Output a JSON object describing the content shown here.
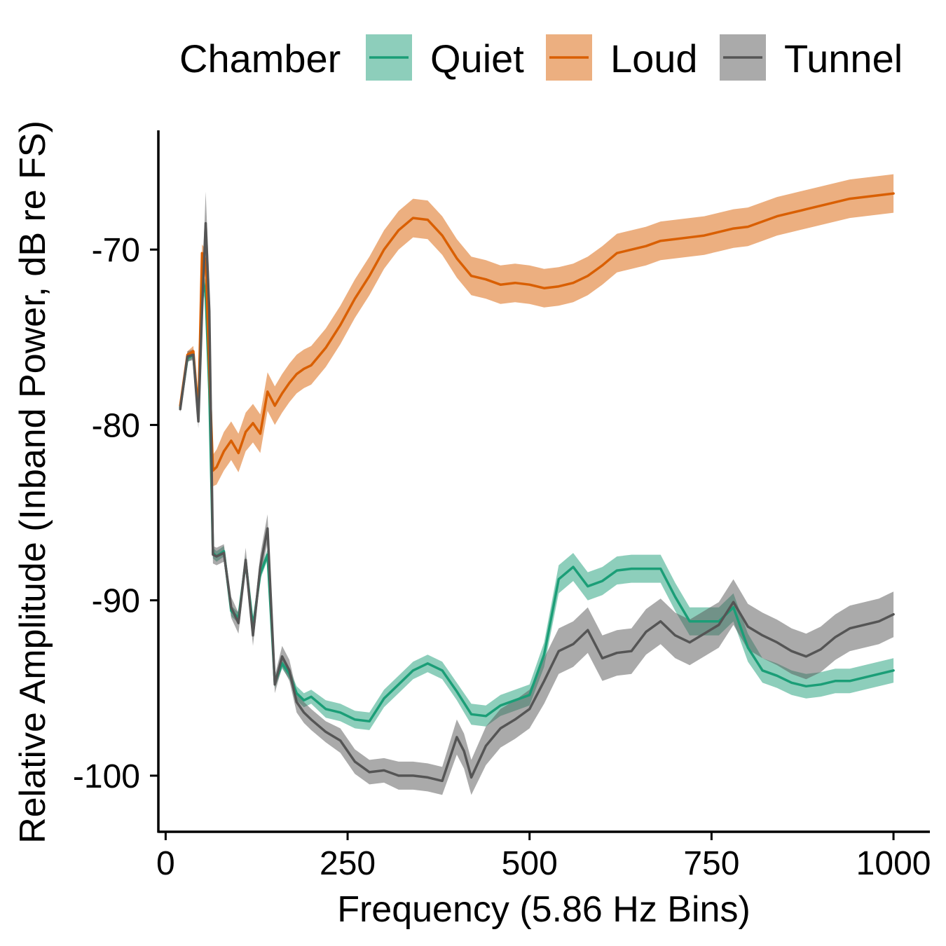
{
  "chart_data": {
    "type": "line",
    "title": "",
    "xlabel": "Frequency (5.86 Hz Bins)",
    "ylabel": "Relative Amplitude (Inband Power, dB re FS)",
    "xlim": [
      -10,
      1050
    ],
    "ylim": [
      -103.2,
      -63.2
    ],
    "xticks": [
      0,
      250,
      500,
      750,
      1000
    ],
    "yticks": [
      -100,
      -90,
      -80,
      -70
    ],
    "xtick_labels": [
      "0",
      "250",
      "500",
      "750",
      "1000"
    ],
    "ytick_labels": [
      "-100",
      "-90",
      "-80",
      "-70"
    ],
    "grid": false,
    "legend": {
      "title": "Chamber",
      "position": "top",
      "ribbon_opacity": 0.5
    },
    "series": [
      {
        "name": "Quiet",
        "color": "#1b9e77",
        "fill": "#8fc9b0",
        "x": [
          20,
          30,
          38,
          45,
          50,
          55,
          60,
          65,
          70,
          80,
          90,
          100,
          110,
          120,
          130,
          140,
          150,
          160,
          170,
          180,
          190,
          200,
          220,
          240,
          260,
          280,
          300,
          320,
          340,
          360,
          380,
          400,
          420,
          440,
          460,
          480,
          500,
          520,
          540,
          560,
          580,
          600,
          620,
          640,
          660,
          680,
          700,
          720,
          740,
          760,
          780,
          800,
          820,
          840,
          860,
          880,
          900,
          920,
          940,
          960,
          980,
          1000
        ],
        "y": [
          -79.0,
          -76.2,
          -76.0,
          -79.4,
          -71.5,
          -72.5,
          -78.0,
          -87.3,
          -87.5,
          -87.2,
          -90.6,
          -91.0,
          -87.8,
          -91.5,
          -88.5,
          -87.4,
          -94.7,
          -93.6,
          -94.2,
          -95.3,
          -95.7,
          -95.5,
          -96.2,
          -96.4,
          -96.8,
          -96.9,
          -95.6,
          -94.8,
          -94.0,
          -93.6,
          -94.0,
          -95.2,
          -96.5,
          -96.6,
          -96.0,
          -95.7,
          -95.4,
          -93.1,
          -88.8,
          -88.1,
          -89.2,
          -88.9,
          -88.3,
          -88.2,
          -88.2,
          -88.2,
          -89.8,
          -91.2,
          -91.2,
          -91.2,
          -90.4,
          -92.7,
          -94.0,
          -94.3,
          -94.7,
          -94.9,
          -94.8,
          -94.6,
          -94.6,
          -94.4,
          -94.2,
          -94.0
        ],
        "lower": [
          -79.2,
          -76.4,
          -76.2,
          -79.7,
          -72.1,
          -73.1,
          -78.2,
          -87.6,
          -87.8,
          -87.5,
          -90.9,
          -91.3,
          -88.1,
          -91.8,
          -88.8,
          -87.7,
          -95.0,
          -93.9,
          -94.5,
          -95.7,
          -96.1,
          -95.9,
          -96.7,
          -96.9,
          -97.3,
          -97.4,
          -96.1,
          -95.3,
          -94.5,
          -94.1,
          -94.5,
          -95.7,
          -97.1,
          -97.2,
          -96.6,
          -96.3,
          -96.0,
          -93.8,
          -89.6,
          -88.9,
          -90.0,
          -89.7,
          -89.1,
          -89.0,
          -89.0,
          -89.0,
          -90.6,
          -92.0,
          -92.0,
          -92.0,
          -91.2,
          -93.5,
          -94.7,
          -95.0,
          -95.4,
          -95.6,
          -95.5,
          -95.3,
          -95.3,
          -95.1,
          -94.9,
          -94.7
        ],
        "upper": [
          -78.8,
          -76.0,
          -75.8,
          -79.1,
          -70.9,
          -71.9,
          -77.8,
          -87.0,
          -87.2,
          -86.9,
          -90.3,
          -90.7,
          -87.5,
          -91.2,
          -88.2,
          -87.1,
          -94.4,
          -93.3,
          -93.9,
          -94.9,
          -95.3,
          -95.1,
          -95.7,
          -95.9,
          -96.3,
          -96.4,
          -95.1,
          -94.3,
          -93.5,
          -93.1,
          -93.5,
          -94.7,
          -95.9,
          -96.0,
          -95.4,
          -95.1,
          -94.8,
          -92.4,
          -88.0,
          -87.3,
          -88.4,
          -88.1,
          -87.5,
          -87.4,
          -87.4,
          -87.4,
          -89.0,
          -90.4,
          -90.4,
          -90.4,
          -89.6,
          -91.9,
          -93.3,
          -93.6,
          -94.0,
          -94.2,
          -94.1,
          -93.9,
          -93.9,
          -93.7,
          -93.5,
          -93.3
        ]
      },
      {
        "name": "Loud",
        "color": "#d95f02",
        "fill": "#e8a07c",
        "x": [
          20,
          30,
          38,
          45,
          50,
          55,
          60,
          65,
          70,
          80,
          90,
          100,
          110,
          120,
          130,
          140,
          150,
          160,
          170,
          180,
          190,
          200,
          220,
          240,
          260,
          280,
          300,
          320,
          340,
          360,
          380,
          400,
          420,
          440,
          460,
          480,
          500,
          520,
          540,
          560,
          580,
          600,
          620,
          640,
          660,
          680,
          700,
          720,
          740,
          760,
          780,
          800,
          820,
          840,
          860,
          880,
          900,
          920,
          940,
          960,
          980,
          1000
        ],
        "y": [
          -78.9,
          -76.0,
          -75.8,
          -79.3,
          -70.2,
          -70.6,
          -76.8,
          -82.6,
          -82.4,
          -81.5,
          -80.9,
          -81.6,
          -80.4,
          -79.9,
          -80.5,
          -78.1,
          -78.9,
          -78.2,
          -77.6,
          -77.1,
          -76.8,
          -76.6,
          -75.6,
          -74.3,
          -72.8,
          -71.5,
          -70.0,
          -68.9,
          -68.2,
          -68.3,
          -69.2,
          -70.5,
          -71.5,
          -71.7,
          -72.0,
          -71.9,
          -72.0,
          -72.2,
          -72.1,
          -71.9,
          -71.5,
          -70.9,
          -70.2,
          -70.0,
          -69.8,
          -69.5,
          -69.4,
          -69.3,
          -69.2,
          -69.0,
          -68.8,
          -68.7,
          -68.4,
          -68.1,
          -67.9,
          -67.7,
          -67.5,
          -67.3,
          -67.1,
          -67.0,
          -66.9,
          -66.8
        ],
        "lower": [
          -79.1,
          -76.2,
          -76.1,
          -79.6,
          -70.7,
          -71.2,
          -77.4,
          -83.5,
          -83.4,
          -82.6,
          -82.0,
          -82.7,
          -81.5,
          -81.0,
          -81.6,
          -79.2,
          -80.0,
          -79.3,
          -78.7,
          -78.2,
          -77.9,
          -77.7,
          -76.7,
          -75.4,
          -73.9,
          -72.6,
          -71.1,
          -70.0,
          -69.3,
          -69.4,
          -70.3,
          -71.6,
          -72.6,
          -72.8,
          -73.1,
          -73.0,
          -73.1,
          -73.3,
          -73.2,
          -73.0,
          -72.6,
          -72.0,
          -71.3,
          -71.1,
          -70.9,
          -70.6,
          -70.5,
          -70.4,
          -70.3,
          -70.1,
          -69.9,
          -69.8,
          -69.5,
          -69.2,
          -69.0,
          -68.8,
          -68.6,
          -68.4,
          -68.2,
          -68.1,
          -68.0,
          -67.9
        ],
        "upper": [
          -78.7,
          -75.8,
          -75.5,
          -79.0,
          -69.7,
          -70.0,
          -76.2,
          -81.7,
          -81.4,
          -80.4,
          -79.8,
          -80.5,
          -79.3,
          -78.8,
          -79.4,
          -77.0,
          -77.8,
          -77.1,
          -76.5,
          -76.0,
          -75.7,
          -75.5,
          -74.5,
          -73.2,
          -71.7,
          -70.4,
          -68.9,
          -67.8,
          -67.1,
          -67.2,
          -68.1,
          -69.4,
          -70.4,
          -70.6,
          -70.9,
          -70.8,
          -70.9,
          -71.1,
          -71.0,
          -70.8,
          -70.4,
          -69.8,
          -69.1,
          -68.9,
          -68.7,
          -68.4,
          -68.3,
          -68.2,
          -68.1,
          -67.9,
          -67.7,
          -67.6,
          -67.3,
          -67.0,
          -66.8,
          -66.6,
          -66.4,
          -66.2,
          -66.0,
          -65.9,
          -65.8,
          -65.7
        ]
      },
      {
        "name": "Tunnel",
        "color": "#555555",
        "fill": "#a6a6a6",
        "x": [
          20,
          30,
          38,
          45,
          50,
          55,
          60,
          65,
          70,
          80,
          90,
          100,
          110,
          120,
          130,
          140,
          150,
          160,
          170,
          180,
          190,
          200,
          220,
          240,
          260,
          280,
          300,
          320,
          340,
          360,
          380,
          400,
          410,
          420,
          440,
          460,
          480,
          500,
          520,
          540,
          560,
          580,
          600,
          620,
          640,
          660,
          680,
          700,
          720,
          740,
          760,
          780,
          800,
          820,
          840,
          860,
          880,
          900,
          920,
          940,
          960,
          980,
          1000
        ],
        "y": [
          -79.1,
          -76.1,
          -76.0,
          -79.8,
          -73.5,
          -68.5,
          -73.5,
          -87.4,
          -87.5,
          -87.3,
          -90.4,
          -91.3,
          -87.7,
          -92.0,
          -88.1,
          -85.9,
          -94.8,
          -93.2,
          -94.0,
          -95.8,
          -96.4,
          -96.8,
          -97.5,
          -98.0,
          -99.2,
          -99.8,
          -99.7,
          -100.0,
          -100.0,
          -100.1,
          -100.3,
          -97.8,
          -98.6,
          -100.1,
          -98.3,
          -97.3,
          -96.8,
          -96.2,
          -94.6,
          -92.9,
          -92.5,
          -91.7,
          -93.3,
          -93.0,
          -92.9,
          -91.8,
          -91.2,
          -92.0,
          -92.4,
          -91.9,
          -91.4,
          -90.1,
          -91.5,
          -92.0,
          -92.4,
          -92.9,
          -93.2,
          -92.8,
          -92.1,
          -91.6,
          -91.4,
          -91.2,
          -90.8
        ],
        "lower": [
          -79.3,
          -76.4,
          -76.3,
          -80.2,
          -74.7,
          -70.3,
          -75.3,
          -87.9,
          -88.0,
          -87.8,
          -91.0,
          -91.9,
          -88.4,
          -92.6,
          -88.8,
          -86.7,
          -95.3,
          -93.8,
          -94.6,
          -96.4,
          -97.0,
          -97.4,
          -98.1,
          -98.7,
          -99.9,
          -100.5,
          -100.4,
          -100.8,
          -100.8,
          -100.9,
          -101.1,
          -98.8,
          -99.6,
          -101.1,
          -99.4,
          -98.4,
          -97.9,
          -97.3,
          -95.9,
          -94.2,
          -93.8,
          -93.0,
          -94.6,
          -94.3,
          -94.2,
          -93.1,
          -92.5,
          -93.3,
          -93.7,
          -93.2,
          -92.7,
          -91.4,
          -92.8,
          -93.3,
          -93.7,
          -94.2,
          -94.5,
          -94.1,
          -93.4,
          -92.9,
          -92.7,
          -92.5,
          -92.1
        ],
        "upper": [
          -78.9,
          -75.8,
          -75.7,
          -79.4,
          -72.3,
          -66.7,
          -71.7,
          -86.9,
          -87.0,
          -86.8,
          -89.8,
          -90.7,
          -87.0,
          -91.4,
          -87.4,
          -85.1,
          -94.3,
          -92.6,
          -93.4,
          -95.2,
          -95.8,
          -96.2,
          -96.9,
          -97.3,
          -98.5,
          -99.1,
          -99.0,
          -99.2,
          -99.2,
          -99.3,
          -99.5,
          -96.8,
          -97.6,
          -99.1,
          -97.2,
          -96.2,
          -95.7,
          -95.1,
          -93.3,
          -91.6,
          -91.2,
          -90.4,
          -92.0,
          -91.7,
          -91.6,
          -90.5,
          -89.9,
          -90.7,
          -91.1,
          -90.6,
          -90.1,
          -88.8,
          -90.2,
          -90.7,
          -91.1,
          -91.6,
          -91.9,
          -91.5,
          -90.8,
          -90.3,
          -90.1,
          -89.9,
          -89.5
        ]
      }
    ]
  }
}
